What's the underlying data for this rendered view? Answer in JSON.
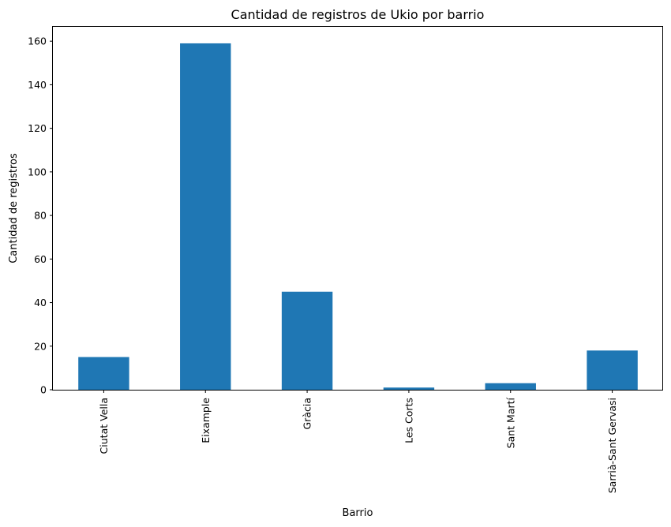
{
  "chart_data": {
    "type": "bar",
    "title": "Cantidad de registros de Ukio por barrio",
    "xlabel": "Barrio",
    "ylabel": "Cantidad de registros",
    "categories": [
      "Ciutat Vella",
      "Eixample",
      "Gràcia",
      "Les Corts",
      "Sant Martí",
      "Sarrià-Sant Gervasi"
    ],
    "values": [
      15,
      159,
      45,
      1,
      3,
      18
    ],
    "ylim": [
      0,
      166.95
    ],
    "yticks": [
      0,
      20,
      40,
      60,
      80,
      100,
      120,
      140,
      160
    ],
    "grid": false,
    "legend": "none",
    "bar_color": "#1f77b4"
  }
}
